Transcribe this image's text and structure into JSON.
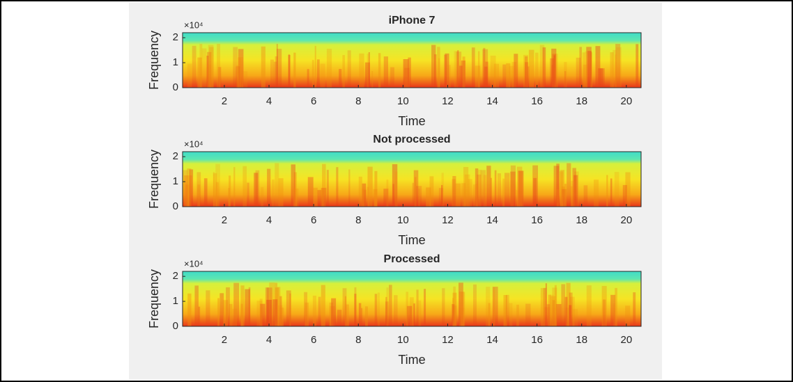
{
  "chart_data": [
    {
      "type": "heatmap",
      "title": "iPhone 7",
      "xlabel": "Time",
      "ylabel": "Frequency",
      "y_exponent": "×10⁴",
      "xlim": [
        0.13,
        20.66
      ],
      "xticks": [
        2,
        4,
        6,
        8,
        10,
        12,
        14,
        16,
        18,
        20
      ],
      "ylim": [
        0,
        2.2
      ],
      "yticks": [
        0,
        1,
        2
      ]
    },
    {
      "type": "heatmap",
      "title": "Not processed",
      "xlabel": "Time",
      "ylabel": "Frequency",
      "y_exponent": "×10⁴",
      "xlim": [
        0.13,
        20.66
      ],
      "xticks": [
        2,
        4,
        6,
        8,
        10,
        12,
        14,
        16,
        18,
        20
      ],
      "ylim": [
        0,
        2.2
      ],
      "yticks": [
        0,
        1,
        2
      ]
    },
    {
      "type": "heatmap",
      "title": "Processed",
      "xlabel": "Time",
      "ylabel": "Frequency",
      "y_exponent": "×10⁴",
      "xlim": [
        0.13,
        20.66
      ],
      "xticks": [
        2,
        4,
        6,
        8,
        10,
        12,
        14,
        16,
        18,
        20
      ],
      "ylim": [
        0,
        2.2
      ],
      "yticks": [
        0,
        1,
        2
      ]
    }
  ]
}
